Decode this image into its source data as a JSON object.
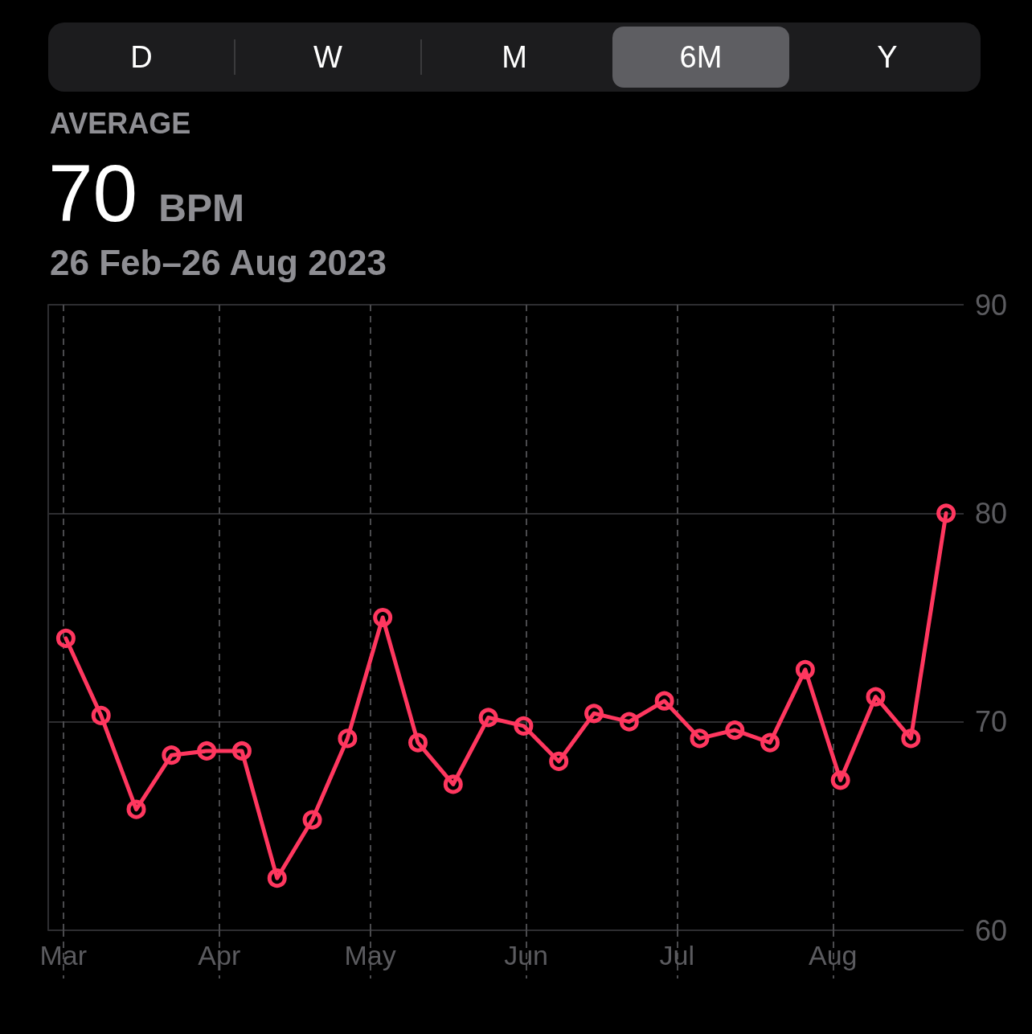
{
  "chart_data": {
    "type": "line",
    "title": "70 BPM",
    "subtitle": "26 Feb–26 Aug 2023",
    "annotations": [
      "D",
      "W",
      "M",
      "6M",
      "Y",
      "AVERAGE"
    ],
    "x": [
      "2023-03-01T12:00",
      "2023-03-08T12:00",
      "2023-03-15T12:00",
      "2023-03-22T12:00",
      "2023-03-29T12:00",
      "2023-04-05T12:00",
      "2023-04-12T12:00",
      "2023-04-19T12:00",
      "2023-04-26T12:00",
      "2023-05-03T12:00",
      "2023-05-10T12:00",
      "2023-05-17T12:00",
      "2023-05-24T12:00",
      "2023-05-31T12:00",
      "2023-06-07T12:00",
      "2023-06-14T12:00",
      "2023-06-21T12:00",
      "2023-06-28T12:00",
      "2023-07-05T12:00",
      "2023-07-12T12:00",
      "2023-07-19T12:00",
      "2023-07-26T12:00",
      "2023-08-02T12:00",
      "2023-08-09T12:00",
      "2023-08-16T12:00",
      "2023-08-23T12:00"
    ],
    "series": [
      {
        "color": "#ff375f",
        "values": [
          74.0,
          70.3,
          65.8,
          68.4,
          68.6,
          68.6,
          62.5,
          65.3,
          69.2,
          75.0,
          69.0,
          67.0,
          70.2,
          69.8,
          68.1,
          70.4,
          70.0,
          71.0,
          69.2,
          69.6,
          69.0,
          72.5,
          67.2,
          71.2,
          69.2,
          80.0
        ]
      }
    ],
    "xlim": [
      "2023-02-26",
      "2023-08-27"
    ],
    "xticks": [
      {
        "value": "2023-03-01",
        "label": "Mar"
      },
      {
        "value": "2023-04-01",
        "label": "Apr"
      },
      {
        "value": "2023-05-01",
        "label": "May"
      },
      {
        "value": "2023-06-01",
        "label": "Jun"
      },
      {
        "value": "2023-07-01",
        "label": "Jul"
      },
      {
        "value": "2023-08-01",
        "label": "Aug"
      }
    ],
    "ylim": [
      60,
      90
    ],
    "yticks": [
      60,
      70,
      80,
      90
    ],
    "grid": true,
    "marker": "circle",
    "line_style": "solid"
  }
}
